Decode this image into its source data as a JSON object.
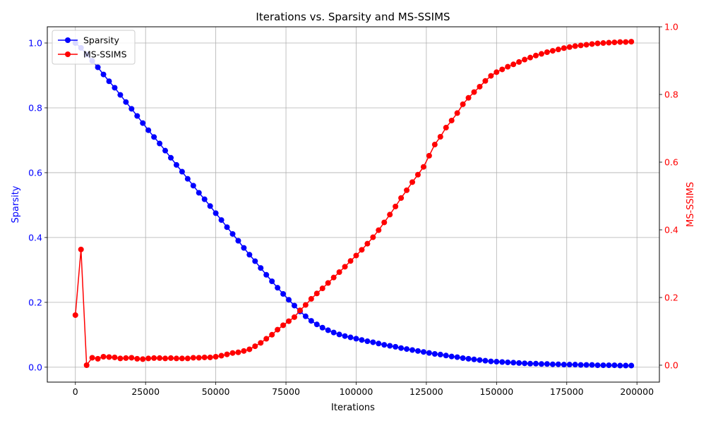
{
  "chart_data": {
    "type": "line",
    "title": "Iterations vs. Sparsity and MS-SSIMS",
    "xlabel": "Iterations",
    "xlim": [
      -10000,
      208000
    ],
    "xticks": [
      0,
      25000,
      50000,
      75000,
      100000,
      125000,
      150000,
      175000,
      200000
    ],
    "xtick_labels": [
      "0",
      "25000",
      "50000",
      "75000",
      "100000",
      "125000",
      "150000",
      "175000",
      "200000"
    ],
    "grid": true,
    "legend_position": "top-left",
    "y_left": {
      "label": "Sparsity",
      "color": "#0000ff",
      "lim": [
        -0.046,
        1.05
      ],
      "ticks": [
        0.0,
        0.2,
        0.4,
        0.6,
        0.8,
        1.0
      ],
      "tick_labels": [
        "0.0",
        "0.2",
        "0.4",
        "0.6",
        "0.8",
        "1.0"
      ]
    },
    "y_right": {
      "label": "MS-SSIMS",
      "color": "#ff0000",
      "lim": [
        -0.05,
        1.0
      ],
      "ticks": [
        0.0,
        0.2,
        0.4,
        0.6,
        0.8,
        1.0
      ],
      "tick_labels": [
        "0.0",
        "0.2",
        "0.4",
        "0.6",
        "0.8",
        "1.0"
      ]
    },
    "x": [
      0,
      2000,
      4000,
      6000,
      8000,
      10000,
      12000,
      14000,
      16000,
      18000,
      20000,
      22000,
      24000,
      26000,
      28000,
      30000,
      32000,
      34000,
      36000,
      38000,
      40000,
      42000,
      44000,
      46000,
      48000,
      50000,
      52000,
      54000,
      56000,
      58000,
      60000,
      62000,
      64000,
      66000,
      68000,
      70000,
      72000,
      74000,
      76000,
      78000,
      80000,
      82000,
      84000,
      86000,
      88000,
      90000,
      92000,
      94000,
      96000,
      98000,
      100000,
      102000,
      104000,
      106000,
      108000,
      110000,
      112000,
      114000,
      116000,
      118000,
      120000,
      122000,
      124000,
      126000,
      128000,
      130000,
      132000,
      134000,
      136000,
      138000,
      140000,
      142000,
      144000,
      146000,
      148000,
      150000,
      152000,
      154000,
      156000,
      158000,
      160000,
      162000,
      164000,
      166000,
      168000,
      170000,
      172000,
      174000,
      176000,
      178000,
      180000,
      182000,
      184000,
      186000,
      188000,
      190000,
      192000,
      194000,
      196000,
      198000
    ],
    "series": [
      {
        "name": "Sparsity",
        "axis": "left",
        "color": "#0000ff",
        "values": [
          1.0,
          0.985,
          0.965,
          0.945,
          0.925,
          0.903,
          0.882,
          0.862,
          0.84,
          0.818,
          0.797,
          0.775,
          0.753,
          0.731,
          0.71,
          0.69,
          0.668,
          0.646,
          0.624,
          0.603,
          0.581,
          0.56,
          0.538,
          0.518,
          0.497,
          0.475,
          0.454,
          0.432,
          0.411,
          0.39,
          0.368,
          0.347,
          0.327,
          0.306,
          0.285,
          0.265,
          0.245,
          0.226,
          0.208,
          0.19,
          0.172,
          0.157,
          0.143,
          0.132,
          0.122,
          0.114,
          0.107,
          0.101,
          0.096,
          0.092,
          0.088,
          0.084,
          0.08,
          0.077,
          0.073,
          0.069,
          0.066,
          0.063,
          0.059,
          0.056,
          0.053,
          0.05,
          0.047,
          0.044,
          0.041,
          0.039,
          0.036,
          0.033,
          0.031,
          0.028,
          0.026,
          0.024,
          0.022,
          0.02,
          0.018,
          0.017,
          0.016,
          0.015,
          0.014,
          0.013,
          0.012,
          0.011,
          0.011,
          0.01,
          0.01,
          0.009,
          0.009,
          0.008,
          0.008,
          0.008,
          0.007,
          0.007,
          0.007,
          0.006,
          0.006,
          0.006,
          0.006,
          0.005,
          0.005,
          0.005
        ]
      },
      {
        "name": "MS-SSIMS",
        "axis": "right",
        "color": "#ff0000",
        "values": [
          0.148,
          0.342,
          0.0,
          0.022,
          0.019,
          0.025,
          0.024,
          0.023,
          0.02,
          0.021,
          0.022,
          0.019,
          0.018,
          0.02,
          0.021,
          0.021,
          0.02,
          0.021,
          0.02,
          0.02,
          0.02,
          0.022,
          0.022,
          0.023,
          0.023,
          0.025,
          0.028,
          0.032,
          0.036,
          0.038,
          0.042,
          0.047,
          0.056,
          0.066,
          0.078,
          0.09,
          0.105,
          0.118,
          0.13,
          0.142,
          0.162,
          0.178,
          0.196,
          0.212,
          0.227,
          0.243,
          0.259,
          0.275,
          0.291,
          0.308,
          0.324,
          0.341,
          0.359,
          0.378,
          0.399,
          0.422,
          0.445,
          0.469,
          0.494,
          0.517,
          0.541,
          0.563,
          0.586,
          0.619,
          0.652,
          0.675,
          0.702,
          0.723,
          0.745,
          0.771,
          0.79,
          0.807,
          0.823,
          0.84,
          0.855,
          0.866,
          0.874,
          0.882,
          0.889,
          0.896,
          0.903,
          0.909,
          0.915,
          0.92,
          0.925,
          0.929,
          0.933,
          0.937,
          0.94,
          0.943,
          0.945,
          0.947,
          0.949,
          0.951,
          0.952,
          0.953,
          0.954,
          0.955,
          0.955,
          0.956
        ]
      }
    ]
  }
}
